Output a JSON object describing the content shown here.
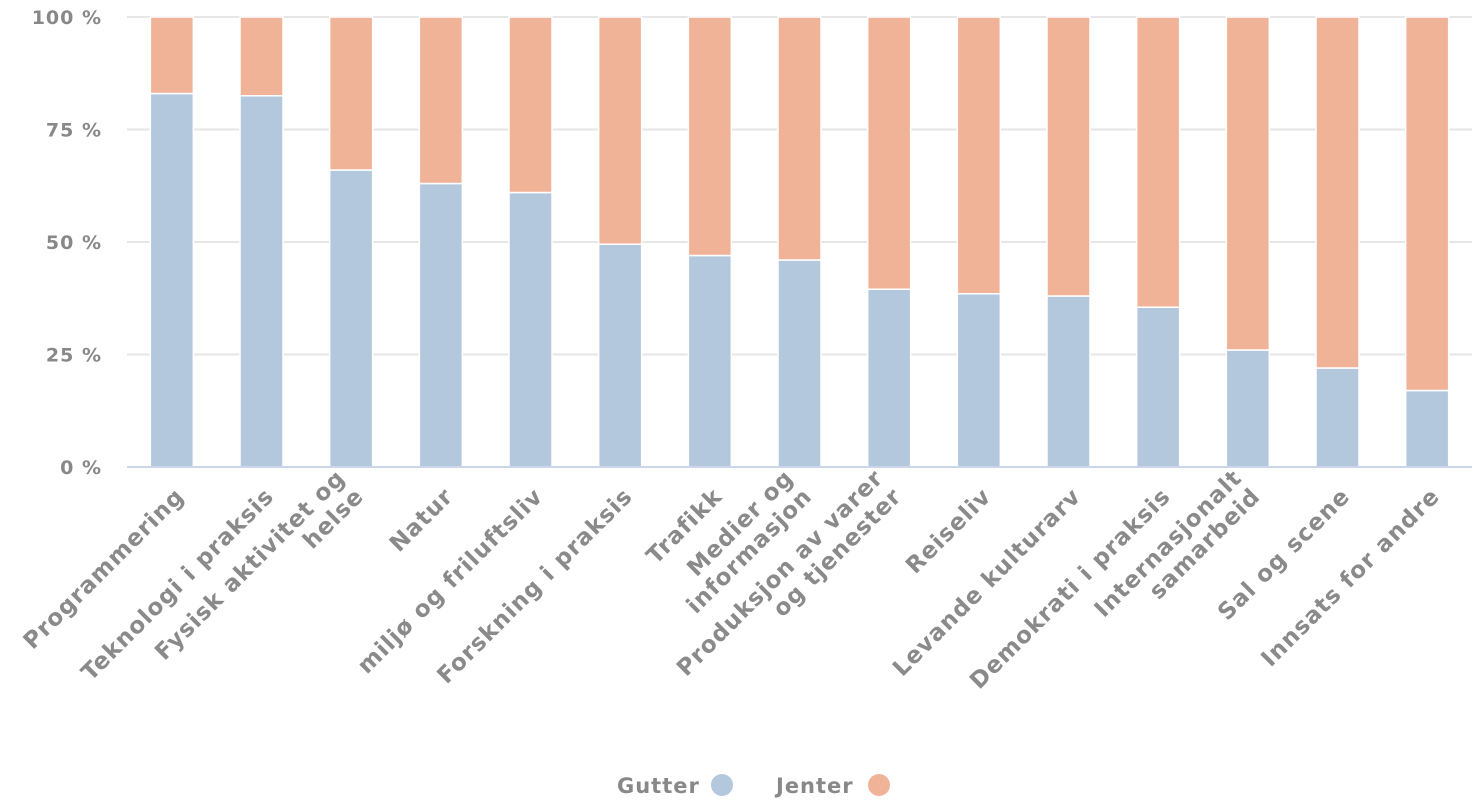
{
  "chart_data": {
    "type": "bar",
    "stacked": true,
    "percent": true,
    "categories": [
      [
        "Programmering"
      ],
      [
        "Teknologi i praksis"
      ],
      [
        "Fysisk aktivitet og",
        "helse"
      ],
      [
        "Natur"
      ],
      [
        "miljø og friluftsliv"
      ],
      [
        "Forskning i praksis"
      ],
      [
        "Trafikk"
      ],
      [
        "Medier og",
        "informasjon"
      ],
      [
        "Produksjon av varer",
        "og tjenester"
      ],
      [
        "Reiseliv"
      ],
      [
        "Levande kulturarv"
      ],
      [
        "Demokrati i praksis"
      ],
      [
        "Internasjonalt",
        "samarbeid"
      ],
      [
        "Sal og scene"
      ],
      [
        "Innsats for andre"
      ]
    ],
    "series": [
      {
        "name": "Gutter",
        "color": "#b3c8dd",
        "values": [
          83,
          82.5,
          66,
          63,
          61,
          49.5,
          47,
          46,
          39.5,
          38.5,
          38,
          35.5,
          26,
          22,
          17
        ]
      },
      {
        "name": "Jenter",
        "color": "#f0b398",
        "values": [
          17,
          17.5,
          34,
          37,
          39,
          50.5,
          53,
          54,
          60.5,
          61.5,
          62,
          64.5,
          74,
          78,
          83
        ]
      }
    ],
    "y_ticks": [
      "0 %",
      "25 %",
      "50 %",
      "75 %",
      "100 %"
    ],
    "ylim": [
      0,
      100
    ],
    "grid": true,
    "legend_position": "bottom-center"
  }
}
